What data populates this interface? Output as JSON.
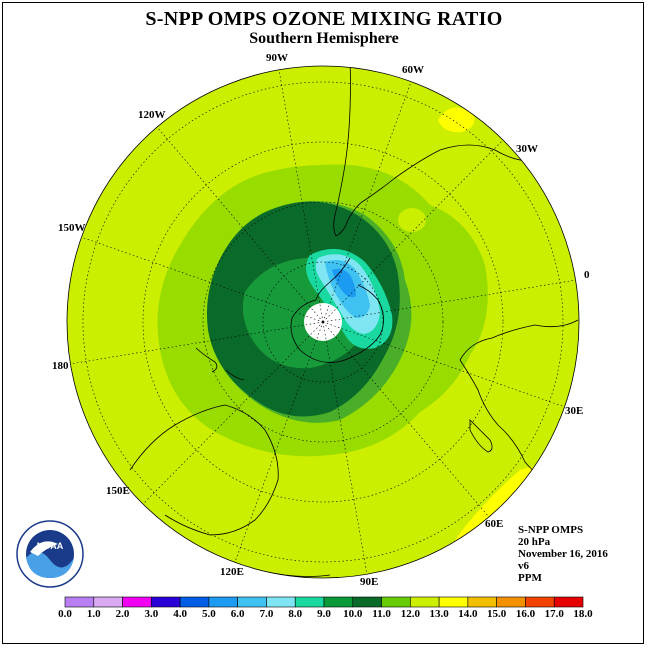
{
  "header": {
    "title": "S-NPP OMPS OZONE MIXING RATIO",
    "subtitle": "Southern Hemisphere"
  },
  "longitude_labels": [
    "90W",
    "60W",
    "30W",
    "0",
    "30E",
    "60E",
    "90E",
    "120E",
    "150E",
    "180",
    "150W",
    "120W"
  ],
  "info": {
    "instrument": "S-NPP OMPS",
    "level": "20 hPa",
    "date": "November 16, 2016",
    "version": "v6",
    "units": "PPM"
  },
  "logo": {
    "text": "NOAA",
    "ring_text": "NATIONAL OCEANIC AND ATMOSPHERIC ADMINISTRATION U.S. DEPARTMENT OF COMMERCE"
  },
  "colorbar": {
    "labels": [
      "0.0",
      "1.0",
      "2.0",
      "3.0",
      "4.0",
      "5.0",
      "6.0",
      "7.0",
      "8.0",
      "9.0",
      "10.0",
      "11.0",
      "12.0",
      "13.0",
      "14.0",
      "15.0",
      "16.0",
      "17.0",
      "18.0"
    ],
    "colors": [
      "#b77ff2",
      "#d9a9f2",
      "#f200f2",
      "#2a00d9",
      "#005ee6",
      "#1b9cf2",
      "#3fc2f2",
      "#7fe5f2",
      "#19d9a0",
      "#0a9a3a",
      "#0a6a2a",
      "#66cc00",
      "#ccee00",
      "#ffff00",
      "#f2c000",
      "#f29000",
      "#f24400",
      "#e60000",
      "#7f4020"
    ]
  },
  "map": {
    "background_color": "#ccee00",
    "center": "South Pole"
  }
}
